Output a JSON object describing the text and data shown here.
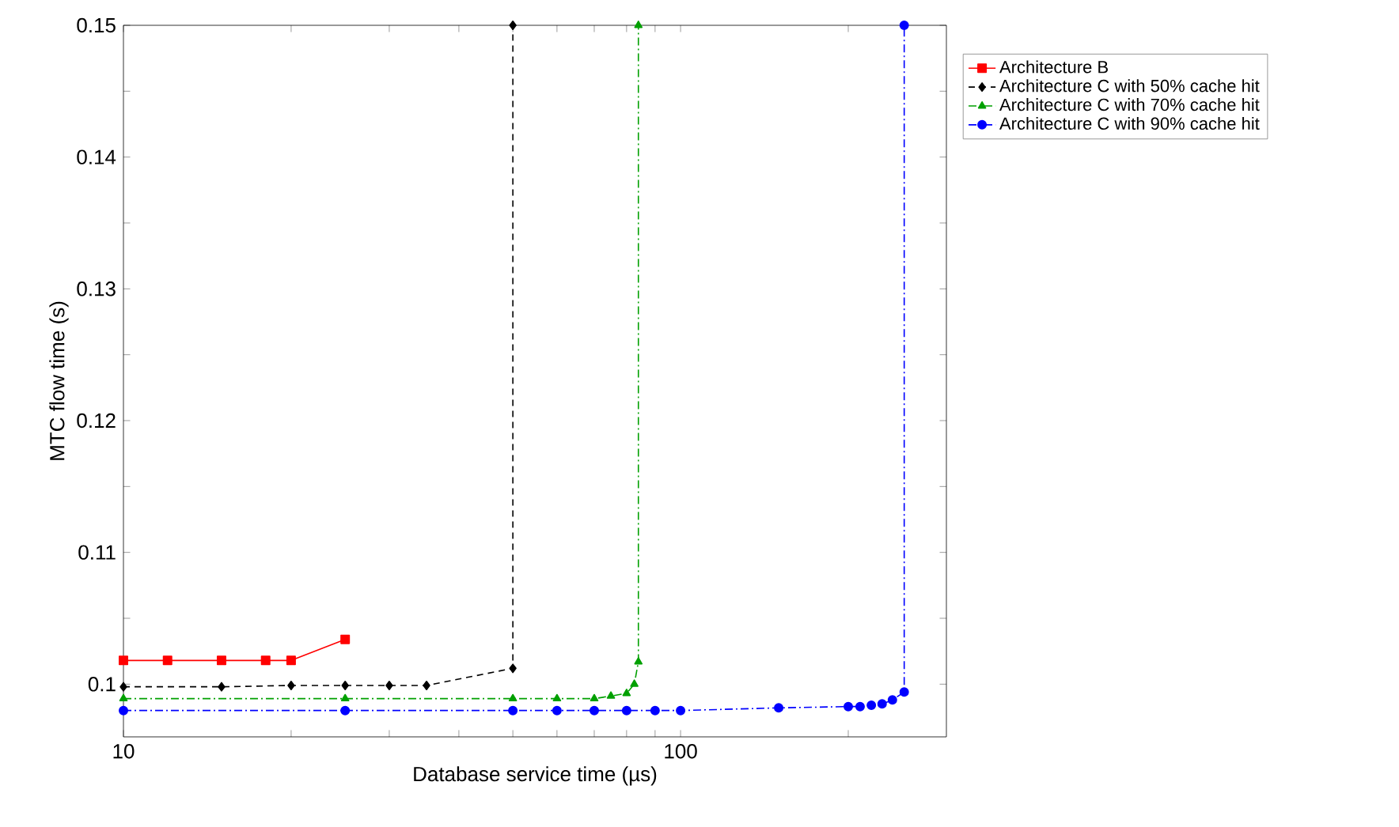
{
  "chart_data": {
    "type": "line",
    "xlabel": "Database service time (µs)",
    "ylabel": "MTC flow time (s)",
    "log": "x",
    "legend": "top right",
    "grid": false,
    "xlim": [
      10,
      300
    ],
    "ylim": [
      0.096,
      0.15
    ],
    "xticks": [
      10,
      {
        "value": 20,
        "label": null
      },
      {
        "value": 30,
        "label": null
      },
      {
        "value": 40,
        "label": null
      },
      {
        "value": 50,
        "label": null
      },
      {
        "value": 60,
        "label": null
      },
      {
        "value": 70,
        "label": null
      },
      {
        "value": 80,
        "label": null
      },
      {
        "value": 90,
        "label": null
      },
      100,
      {
        "value": 200,
        "label": null
      }
    ],
    "yticks": [
      {
        "value": 0.1,
        "label": "0.1"
      },
      0.11,
      0.12,
      0.13,
      0.14,
      0.15,
      {
        "value": 0.105,
        "label": null
      },
      {
        "value": 0.115,
        "label": null
      },
      {
        "value": 0.125,
        "label": null
      },
      {
        "value": 0.135,
        "label": null
      },
      {
        "value": 0.145,
        "label": null
      }
    ],
    "series": [
      {
        "name": "Architecture B",
        "color": "#ff0000",
        "marker": "square",
        "line_style": "solid",
        "x": [
          10,
          12,
          15,
          18,
          20,
          25
        ],
        "values": [
          0.1018,
          0.1018,
          0.1018,
          0.1018,
          0.1018,
          0.1034
        ]
      },
      {
        "name": "Architecture C with 50% cache hit",
        "color": "#000000",
        "marker": "diamond",
        "line_style": "dashed",
        "x": [
          10,
          15,
          20,
          25,
          30,
          35,
          50,
          50
        ],
        "values": [
          0.0998,
          0.0998,
          0.0999,
          0.0999,
          0.0999,
          0.0999,
          0.1012,
          0.15
        ]
      },
      {
        "name": "Architecture C with 70% cache hit",
        "color": "#00a000",
        "marker": "triangle",
        "line_style": "dashdot",
        "x": [
          10,
          25,
          50,
          60,
          70,
          75,
          80,
          82.6,
          84,
          84
        ],
        "values": [
          0.0989,
          0.0989,
          0.0989,
          0.0989,
          0.0989,
          0.0991,
          0.0993,
          0.1,
          0.1017,
          0.15
        ]
      },
      {
        "name": "Architecture C with 90% cache hit",
        "color": "#0000ff",
        "marker": "circle",
        "line_style": "dashdot",
        "x": [
          10,
          25,
          50,
          60,
          70,
          80,
          90,
          100,
          150,
          200,
          210,
          220,
          230,
          240,
          252,
          252
        ],
        "values": [
          0.098,
          0.098,
          0.098,
          0.098,
          0.098,
          0.098,
          0.098,
          0.098,
          0.0982,
          0.0983,
          0.0983,
          0.0984,
          0.0985,
          0.0988,
          0.0994,
          0.15
        ]
      }
    ]
  }
}
